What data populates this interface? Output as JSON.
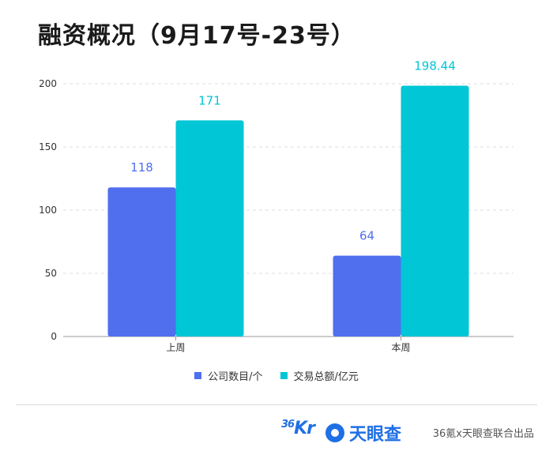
{
  "title": "融资概况（9月17号-23号）",
  "colors": {
    "company": "#4f6fef",
    "amount": "#00c6d6",
    "grid": "#dddddd"
  },
  "chart_data": {
    "type": "bar",
    "categories": [
      "上周",
      "本周"
    ],
    "series": [
      {
        "name": "公司数目/个",
        "values": [
          118,
          64
        ],
        "color": "#4f6fef",
        "labels": [
          "118",
          "64"
        ]
      },
      {
        "name": "交易总额/亿元",
        "values": [
          171,
          198.44
        ],
        "color": "#00c6d6",
        "labels": [
          "171",
          "198.44"
        ]
      }
    ],
    "yticks": [
      "0",
      "50",
      "100",
      "150",
      "200"
    ],
    "ylim": [
      0,
      200
    ],
    "grid": true,
    "legend_position": "bottom"
  },
  "footer": {
    "logo_36kr_num": "36",
    "logo_36kr_text": "Kr",
    "logo_tyc": "天眼查",
    "credit": "36氪x天眼查联合出品"
  }
}
